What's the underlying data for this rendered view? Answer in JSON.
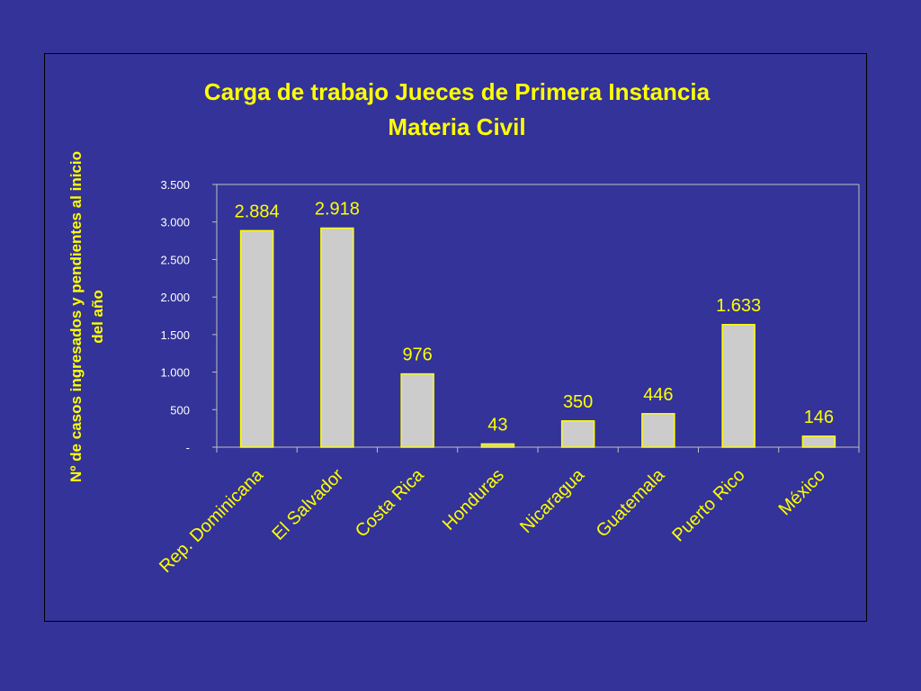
{
  "colors": {
    "background": "#333399",
    "text": "#FFFF00",
    "tick_text": "#FFFFFF",
    "bar_fill": "#CCCCCC",
    "bar_stroke": "#FFFF00",
    "axis": "#C0C0C0"
  },
  "chart_data": {
    "type": "bar",
    "title": [
      "Carga de trabajo Jueces de Primera Instancia",
      "Materia Civil"
    ],
    "xlabel": "",
    "ylabel": [
      "Nº de casos ingresados y pendientes al inicio",
      "del año"
    ],
    "categories": [
      "Rep. Dominicana",
      "El Salvador",
      "Costa Rica",
      "Honduras",
      "Nicaragua",
      "Guatemala",
      "Puerto Rico",
      "México"
    ],
    "values": [
      2884,
      2918,
      976,
      43,
      350,
      446,
      1633,
      146
    ],
    "data_labels": [
      "2.884",
      "2.918",
      "976",
      "43",
      "350",
      "446",
      "1.633",
      "146"
    ],
    "ylim": [
      0,
      3500
    ],
    "yticks": [
      0,
      500,
      1000,
      1500,
      2000,
      2500,
      3000,
      3500
    ],
    "ytick_labels": [
      "-",
      "500",
      "1.000",
      "1.500",
      "2.000",
      "2.500",
      "3.000",
      "3.500"
    ],
    "grid": false,
    "legend": "none"
  }
}
